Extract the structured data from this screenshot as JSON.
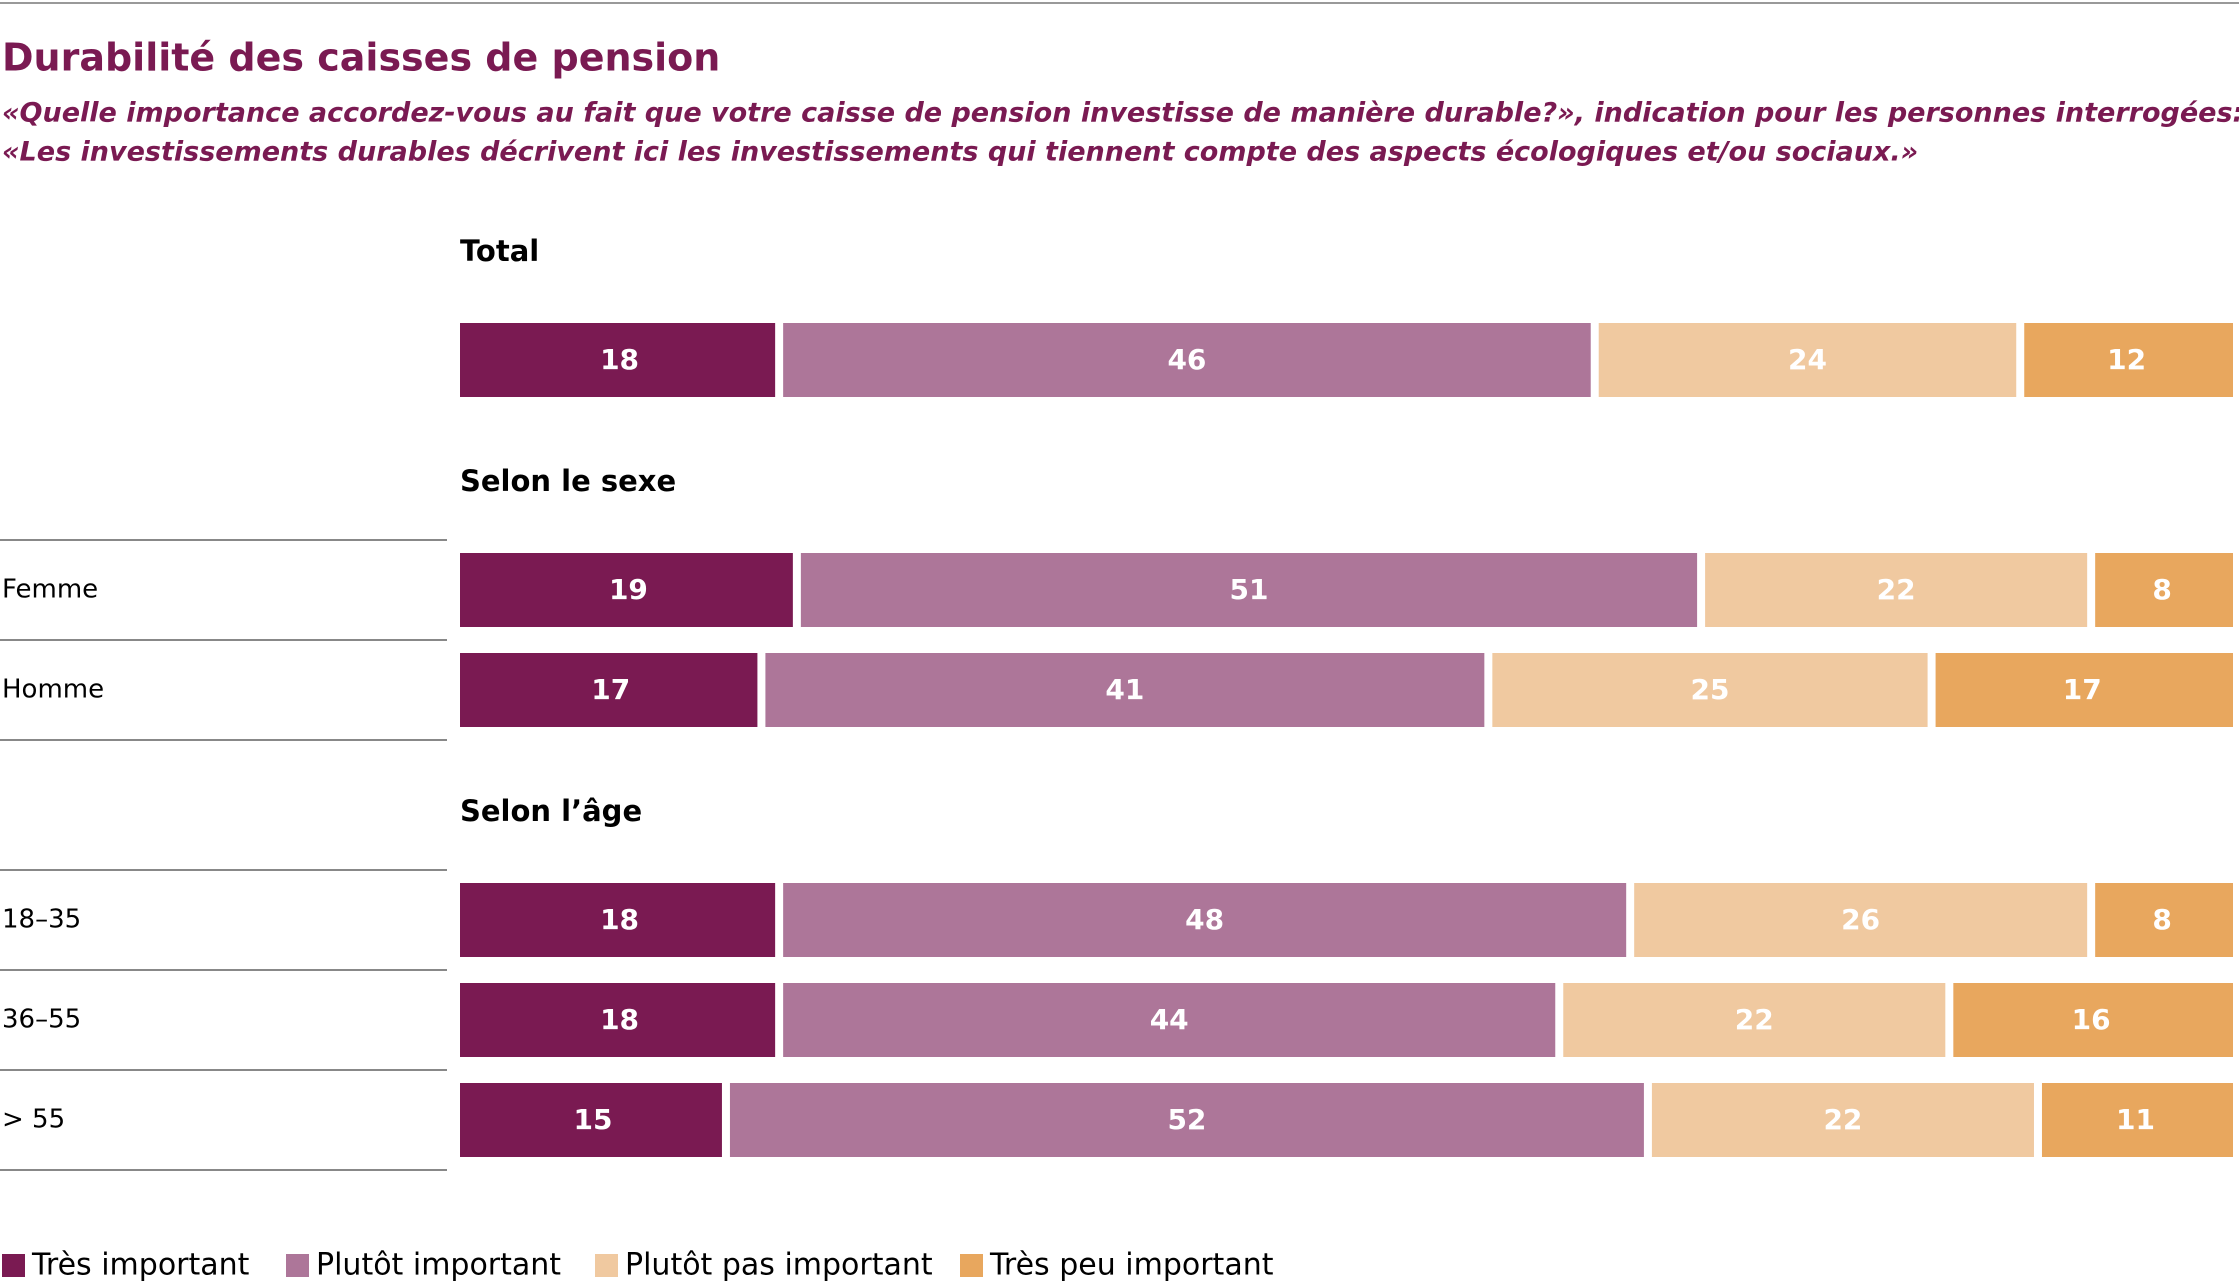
{
  "chart_data": {
    "type": "bar",
    "orientation": "horizontal",
    "stacked": true,
    "title": "Durabilité des caisses de pension",
    "subtitle": [
      "«Quelle importance accordez-vous au fait que votre caisse de pension investisse de manière durable?», indication pour les personnes interrogées:",
      "«Les investissements durables décrivent ici les investissements qui tiennent compte des aspects écologiques et/ou sociaux.»"
    ],
    "series": [
      {
        "name": "Très important",
        "color": "#7a1a52"
      },
      {
        "name": "Plutôt important",
        "color": "#ad7699"
      },
      {
        "name": "Plutôt pas important",
        "color": "#f0c9a0"
      },
      {
        "name": "Très peu important",
        "color": "#e8a75e"
      }
    ],
    "groups": [
      {
        "name": "Total",
        "categories": [
          null
        ],
        "values": [
          [
            18,
            46,
            24,
            12
          ]
        ]
      },
      {
        "name": "Selon le sexe",
        "categories": [
          "Femme",
          "Homme"
        ],
        "values": [
          [
            19,
            51,
            22,
            8
          ],
          [
            17,
            41,
            25,
            17
          ]
        ]
      },
      {
        "name": "Selon l’âge",
        "categories": [
          "18–35",
          "36–55",
          "> 55"
        ],
        "values": [
          [
            18,
            48,
            26,
            8
          ],
          [
            18,
            44,
            22,
            16
          ],
          [
            15,
            52,
            22,
            11
          ]
        ]
      }
    ]
  }
}
